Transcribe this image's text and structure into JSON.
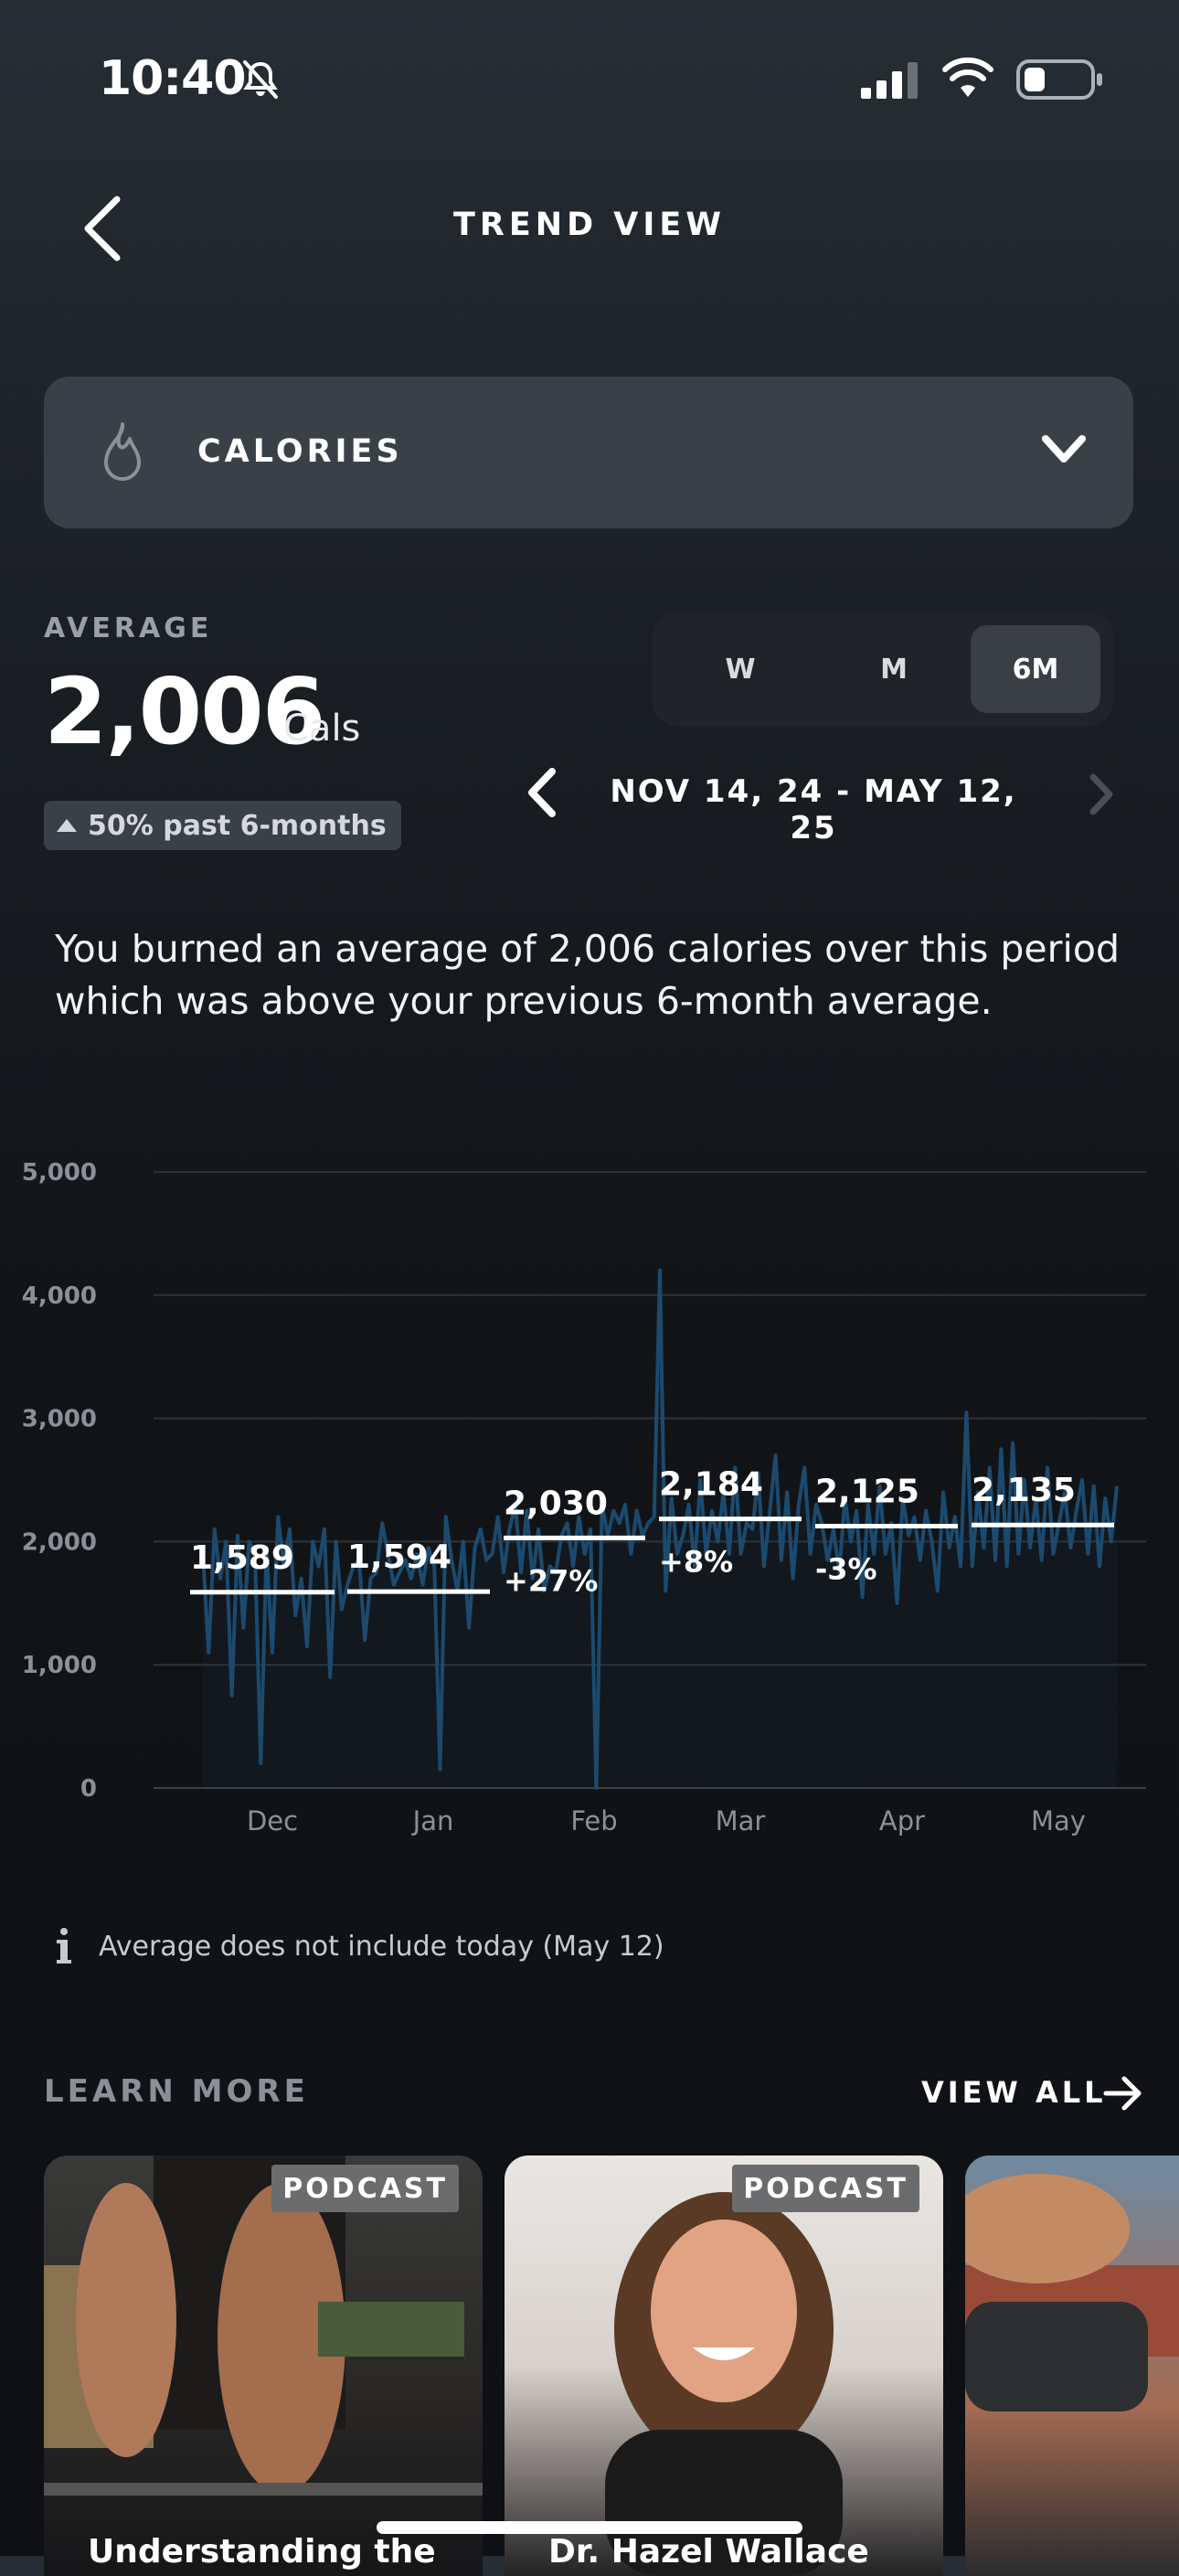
{
  "status": {
    "time": "10:40"
  },
  "header": {
    "title": "TREND VIEW"
  },
  "metric": {
    "label": "CALORIES"
  },
  "average": {
    "label": "AVERAGE",
    "value": "2,006",
    "unit": "Cals",
    "badge": "50% past 6-months"
  },
  "range": {
    "options": [
      "W",
      "M",
      "6M"
    ],
    "selected": "6M",
    "dates": "NOV 14, 24 - MAY 12, 25"
  },
  "summary": "You burned an average of 2,006 calories over this period which was above your previous 6-month average.",
  "chart_data": {
    "type": "line",
    "ylim": [
      0,
      5000
    ],
    "y_ticks": [
      "5,000",
      "4,000",
      "3,000",
      "2,000",
      "1,000",
      "0"
    ],
    "x_ticks": [
      "Dec",
      "Jan",
      "Feb",
      "Mar",
      "Apr",
      "May"
    ],
    "monthly_averages": [
      {
        "value": 1589,
        "label": "1,589",
        "change": ""
      },
      {
        "value": 1594,
        "label": "1,594",
        "change": ""
      },
      {
        "value": 2030,
        "label": "2,030",
        "change": "+27%"
      },
      {
        "value": 2184,
        "label": "2,184",
        "change": "+8%"
      },
      {
        "value": 2125,
        "label": "2,125",
        "change": "-3%"
      },
      {
        "value": 2135,
        "label": "2,135",
        "change": ""
      }
    ],
    "series": [
      {
        "values": [
          1900,
          1100,
          2100,
          1700,
          2000,
          750,
          2050,
          1300,
          2000,
          1900,
          200,
          1950,
          1100,
          2200,
          1800,
          2100,
          1400,
          1700,
          1150,
          2000,
          1800,
          2100,
          900,
          2000,
          1450,
          1650,
          1800,
          1850,
          1200,
          1700,
          1750,
          2150,
          1900,
          1650,
          1750,
          1850,
          1700,
          1900,
          1650,
          1950,
          1800,
          150,
          2200,
          1850,
          1600,
          2000,
          1300,
          1950,
          2100,
          1850,
          1900,
          2200,
          1750,
          2100,
          2300,
          1750,
          2250,
          1700,
          2100,
          1600,
          1800,
          1750,
          2050,
          2150,
          1800,
          2200,
          1900,
          2100,
          0,
          2300,
          2050,
          2250,
          2150,
          2300,
          1900,
          2250,
          2050,
          2150,
          2200,
          4200,
          1600,
          2350,
          1900,
          2050,
          2300,
          1800,
          2500,
          1900,
          2250,
          2000,
          2400,
          1900,
          2600,
          1900,
          2150,
          2100,
          2550,
          1800,
          2250,
          2700,
          1850,
          2400,
          1700,
          2300,
          2600,
          1900,
          2300,
          2150,
          1850,
          2100,
          1750,
          2350,
          2000,
          2250,
          1550,
          2300,
          1900,
          2450,
          1900,
          2150,
          1500,
          2350,
          2050,
          2200,
          1850,
          2250,
          2000,
          1600,
          2400,
          1950,
          2200,
          1800,
          3050,
          1800,
          2400,
          1950,
          2600,
          1850,
          2750,
          1800,
          2800,
          1900,
          2500,
          1950,
          2350,
          1850,
          2600,
          1900,
          2150,
          2400,
          1950,
          2250,
          2500,
          1900,
          2450,
          1800,
          2350,
          2000,
          2450
        ]
      }
    ]
  },
  "note": "Average does not include today (May 12)",
  "learn_more": {
    "label": "LEARN MORE",
    "view_all": "VIEW ALL",
    "cards": [
      {
        "tag": "PODCAST",
        "title": "Understanding the"
      },
      {
        "tag": "PODCAST",
        "title": "Dr. Hazel Wallace"
      },
      {
        "tag": "",
        "title": ""
      }
    ]
  }
}
